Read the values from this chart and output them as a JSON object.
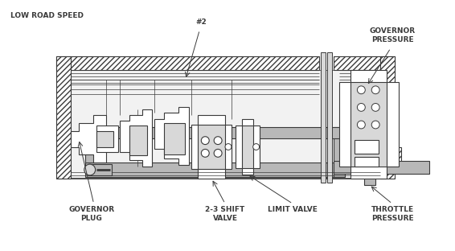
{
  "background_color": "#ffffff",
  "line_color": "#3a3a3a",
  "gray_fill": "#b8b8b8",
  "light_gray": "#d8d8d8",
  "labels": {
    "top_left": "LOW ROAD SPEED",
    "label_2": "#2",
    "governor_pressure": "GOVERNOR\nPRESSURE",
    "governor_plug": "GOVERNOR\nPLUG",
    "shift_valve": "2-3 SHIFT\nVALVE",
    "limit_valve": "LIMIT VALVE",
    "throttle_pressure": "THROTTLE\nPRESSURE"
  },
  "figsize": [
    5.66,
    3.12
  ],
  "dpi": 100
}
